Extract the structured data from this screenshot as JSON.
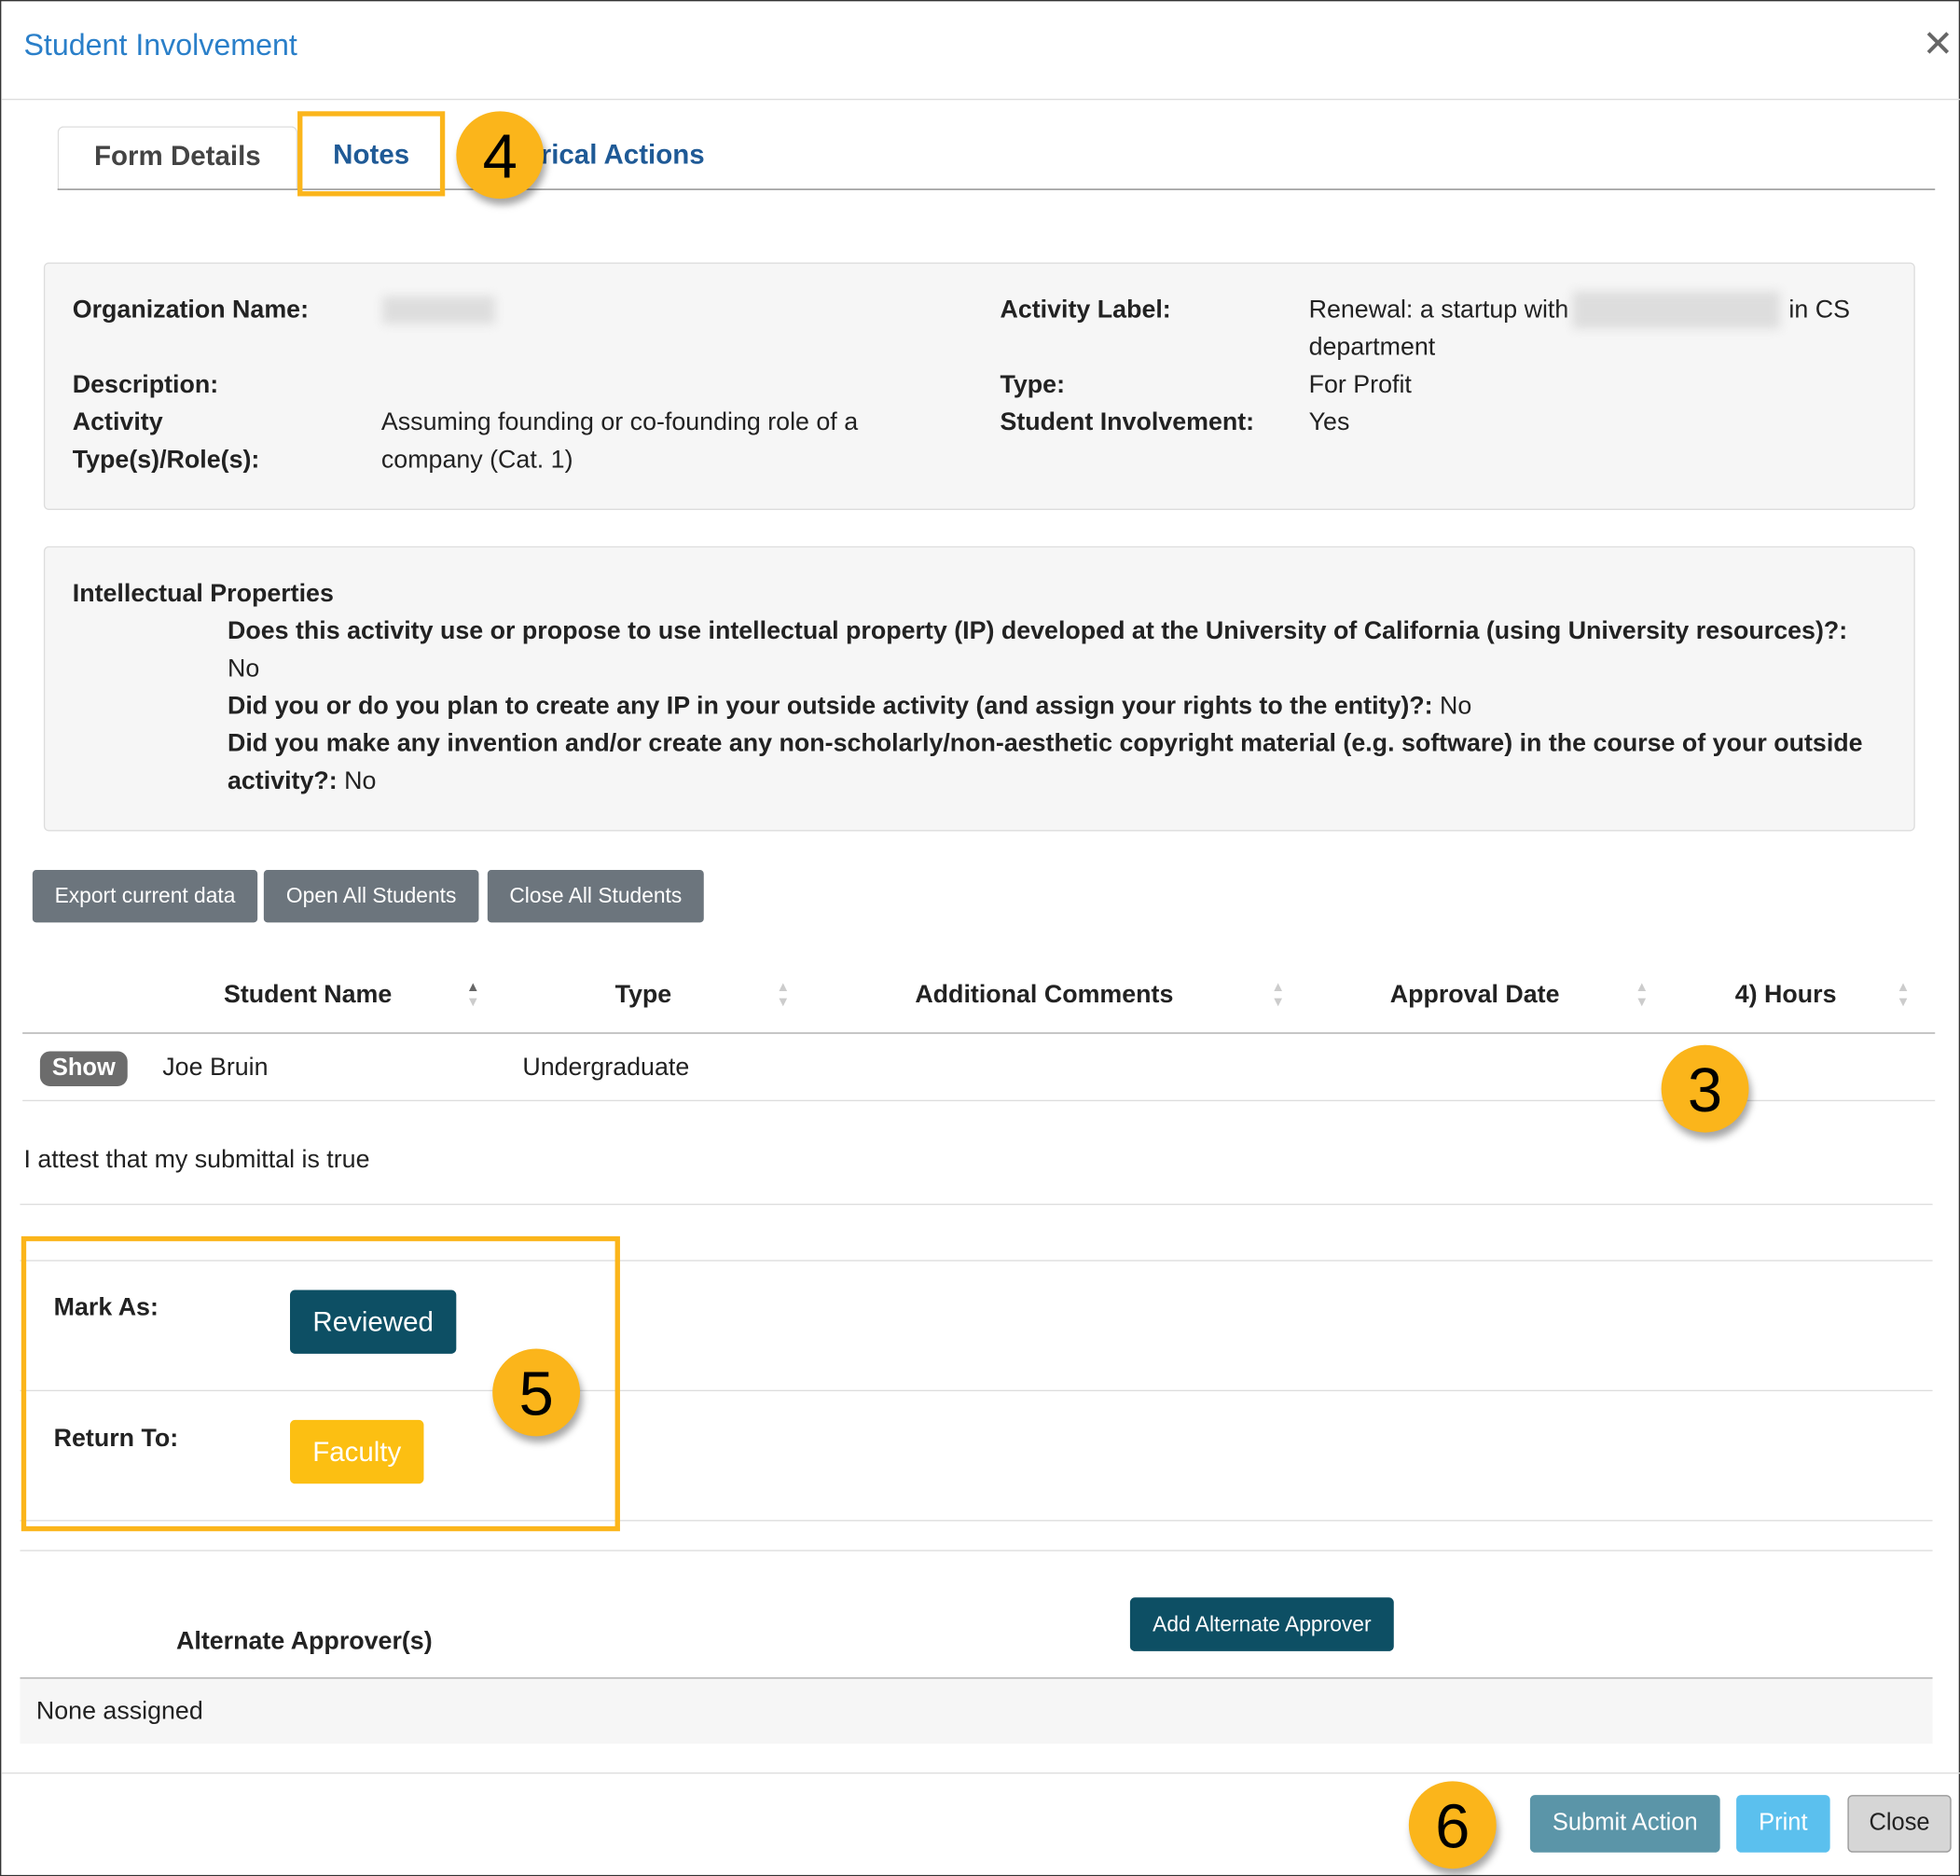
{
  "modal": {
    "title": "Student Involvement",
    "close_icon": "close-x-icon"
  },
  "tabs": [
    {
      "label": "Form Details",
      "active": true
    },
    {
      "label": "Notes",
      "active": false
    },
    {
      "label": "orical Actions",
      "active": false
    }
  ],
  "callouts": {
    "tab": "4",
    "hours": "3",
    "mark": "5",
    "submit": "6",
    "color": "#fbb51b"
  },
  "details": {
    "org_label": "Organization Name:",
    "activity_label_label": "Activity Label:",
    "activity_label_value_a": "Renewal: a startup with",
    "activity_label_value_b": "in CS",
    "activity_label_value_c": "department",
    "description_label": "Description:",
    "type_label": "Type:",
    "type_value": "For Profit",
    "roles_label_1": "Activity",
    "roles_label_2": "Type(s)/Role(s):",
    "roles_value_1": "Assuming founding or co-founding role of a",
    "roles_value_2": "company (Cat. 1)",
    "student_involvement_label": "Student Involvement:",
    "student_involvement_value": "Yes"
  },
  "ip": {
    "heading": "Intellectual Properties",
    "q1": "Does this activity use or propose to use intellectual property (IP) developed at the University of California (using University resources)?:",
    "a1": "No",
    "q2": "Did you or do you plan to create any IP in your outside activity (and assign your rights to the entity)?:",
    "a2": "No",
    "q3a": "Did you make any invention and/or create any non-scholarly/non-aesthetic copyright material (e.g. software) in the course of your outside",
    "q3b": "activity?:",
    "a3": "No"
  },
  "toolbar": {
    "export": "Export current data",
    "open_all": "Open All Students",
    "close_all": "Close All Students"
  },
  "table": {
    "columns": [
      "Student Name",
      "Type",
      "Additional Comments",
      "Approval Date",
      "4) Hours"
    ],
    "rows": [
      {
        "action": "Show",
        "name": "Joe Bruin",
        "type": "Undergraduate",
        "comments": "",
        "approval_date": "",
        "hours": ""
      }
    ]
  },
  "attest": "I attest that my submittal is true",
  "actions": {
    "mark_as_label": "Mark As:",
    "mark_as_button": "Reviewed",
    "return_to_label": "Return To:",
    "return_to_button": "Faculty"
  },
  "alternates": {
    "heading": "Alternate Approver(s)",
    "add_button": "Add Alternate Approver",
    "empty": "None assigned"
  },
  "footer": {
    "submit": "Submit Action",
    "print": "Print",
    "close": "Close"
  }
}
